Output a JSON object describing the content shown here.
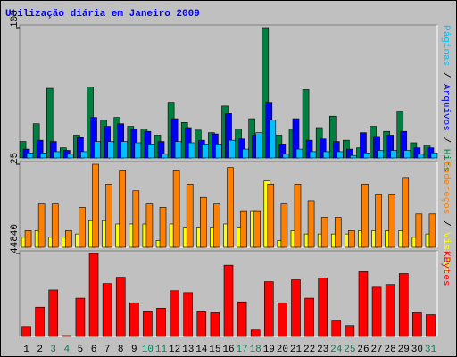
{
  "chart_data": [
    {
      "type": "bar",
      "title": "Utilização diária em Janeiro 2009",
      "ylim": [
        0,
        103
      ],
      "yticks": [
        103
      ],
      "series": [
        {
          "name": "Hits",
          "color": "#008040",
          "values": [
            13,
            27,
            55,
            8,
            18,
            56,
            30,
            32,
            25,
            23,
            18,
            44,
            28,
            22,
            20,
            41,
            23,
            31,
            103,
            18,
            23,
            54,
            24,
            33,
            14,
            8,
            25,
            21,
            37,
            12,
            10
          ]
        },
        {
          "name": "Arquivos",
          "color": "#0000ff",
          "values": [
            7,
            14,
            13,
            6,
            16,
            32,
            25,
            27,
            23,
            21,
            13,
            31,
            24,
            14,
            19,
            35,
            15,
            18,
            44,
            11,
            31,
            14,
            15,
            13,
            7,
            20,
            17,
            18,
            21,
            8,
            8
          ]
        },
        {
          "name": "Páginas",
          "color": "#00c0ff",
          "values": [
            4,
            4,
            5,
            3,
            5,
            13,
            13,
            13,
            12,
            11,
            3,
            13,
            12,
            11,
            11,
            14,
            7,
            20,
            30,
            3,
            7,
            5,
            5,
            5,
            2,
            4,
            6,
            6,
            6,
            3,
            4
          ]
        }
      ]
    },
    {
      "type": "bar",
      "ylim": [
        0,
        25
      ],
      "yticks": [
        25
      ],
      "series": [
        {
          "name": "Visitas",
          "color": "#ffff00",
          "values": [
            3,
            5,
            3,
            3,
            4,
            8,
            8,
            7,
            7,
            7,
            2,
            7,
            6,
            6,
            6,
            7,
            6,
            11,
            20,
            2,
            5,
            4,
            4,
            4,
            4,
            5,
            5,
            5,
            5,
            3,
            4
          ]
        },
        {
          "name": "Endereços",
          "color": "#ff8000",
          "values": [
            5,
            13,
            13,
            5,
            12,
            25,
            19,
            23,
            17,
            13,
            12,
            23,
            19,
            15,
            13,
            24,
            11,
            11,
            19,
            13,
            19,
            14,
            9,
            9,
            5,
            19,
            16,
            16,
            21,
            10,
            10
          ]
        }
      ]
    },
    {
      "type": "bar",
      "ylim": [
        0,
        44840
      ],
      "yticks": [
        44840
      ],
      "categories": [
        "1",
        "2",
        "3",
        "4",
        "5",
        "6",
        "7",
        "8",
        "9",
        "10",
        "11",
        "12",
        "13",
        "14",
        "15",
        "16",
        "17",
        "18",
        "19",
        "20",
        "21",
        "22",
        "23",
        "24",
        "25",
        "26",
        "27",
        "28",
        "29",
        "30",
        "31"
      ],
      "label_colors": [
        "#000000",
        "#000000",
        "#00805c",
        "#00805c",
        "#000000",
        "#000000",
        "#000000",
        "#000000",
        "#000000",
        "#00805c",
        "#00805c",
        "#000000",
        "#000000",
        "#000000",
        "#000000",
        "#000000",
        "#00805c",
        "#00805c",
        "#000000",
        "#000000",
        "#000000",
        "#000000",
        "#000000",
        "#00805c",
        "#00805c",
        "#000000",
        "#000000",
        "#000000",
        "#000000",
        "#000000",
        "#00805c"
      ],
      "series": [
        {
          "name": "KBytes",
          "color": "#ff0000",
          "values": [
            5400,
            15800,
            25100,
            500,
            20700,
            44840,
            28600,
            32000,
            18200,
            13300,
            15300,
            24700,
            23700,
            13300,
            12800,
            38500,
            18700,
            3500,
            29600,
            18200,
            30600,
            20700,
            31600,
            8400,
            5900,
            35000,
            26600,
            28100,
            34000,
            12800,
            11800
          ]
        }
      ]
    }
  ],
  "legend_separator": "/"
}
